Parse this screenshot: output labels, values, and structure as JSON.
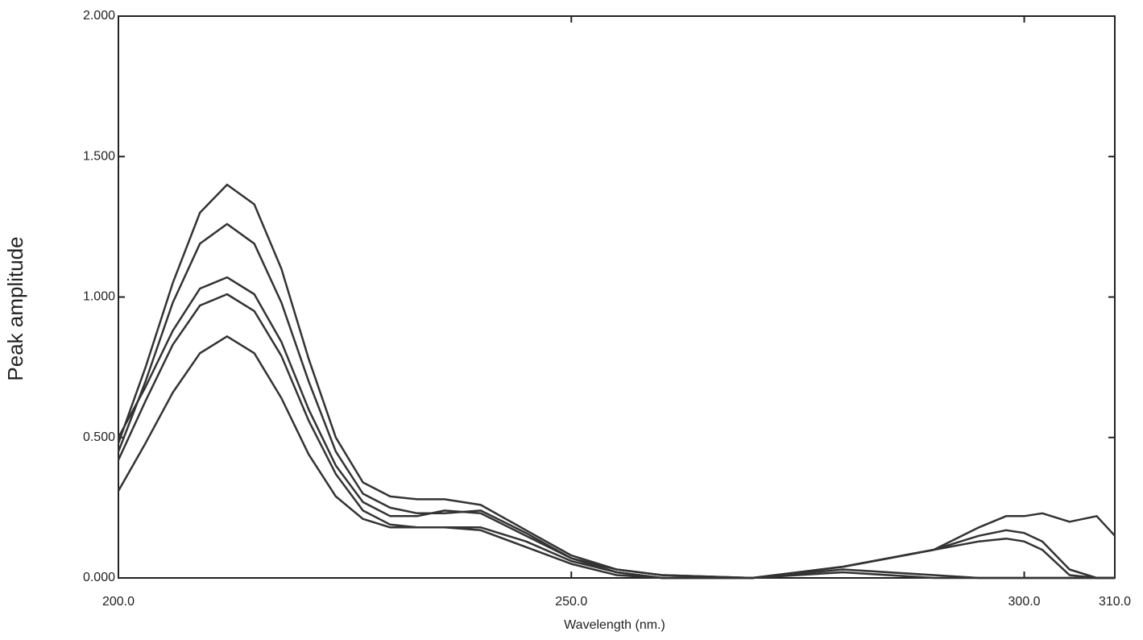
{
  "chart_data": {
    "type": "line",
    "x_label": "Wavelength (nm.)",
    "y_label": "Peak amplitude",
    "x": [
      200,
      203,
      206,
      209,
      212,
      215,
      218,
      221,
      224,
      227,
      230,
      233,
      236,
      240,
      245,
      250,
      255,
      260,
      270,
      280,
      290,
      295,
      298,
      300,
      302,
      305,
      308,
      310
    ],
    "series": [
      {
        "color": "#333333",
        "values": [
          0.48,
          0.75,
          1.05,
          1.3,
          1.4,
          1.33,
          1.1,
          0.78,
          0.5,
          0.34,
          0.29,
          0.28,
          0.28,
          0.26,
          0.17,
          0.08,
          0.03,
          0.01,
          0,
          0.04,
          0.1,
          0.18,
          0.22,
          0.22,
          0.23,
          0.2,
          0.22,
          0.15
        ]
      },
      {
        "color": "#333333",
        "values": [
          0.45,
          0.7,
          0.98,
          1.19,
          1.26,
          1.19,
          0.98,
          0.7,
          0.45,
          0.3,
          0.25,
          0.23,
          0.23,
          0.24,
          0.16,
          0.07,
          0.03,
          0.01,
          0,
          0.04,
          0.1,
          0.15,
          0.17,
          0.16,
          0.13,
          0.03,
          0,
          0
        ]
      },
      {
        "color": "#333333",
        "values": [
          0.5,
          0.68,
          0.88,
          1.03,
          1.07,
          1.01,
          0.84,
          0.6,
          0.4,
          0.27,
          0.22,
          0.22,
          0.24,
          0.23,
          0.15,
          0.07,
          0.02,
          0,
          0,
          0.04,
          0.1,
          0.13,
          0.14,
          0.13,
          0.1,
          0.01,
          0,
          0
        ]
      },
      {
        "color": "#333333",
        "values": [
          0.42,
          0.63,
          0.83,
          0.97,
          1.01,
          0.95,
          0.79,
          0.56,
          0.37,
          0.24,
          0.19,
          0.18,
          0.18,
          0.18,
          0.13,
          0.06,
          0.02,
          0,
          0,
          0.03,
          0.01,
          0,
          0,
          0,
          0,
          0,
          0,
          0
        ]
      },
      {
        "color": "#333333",
        "values": [
          0.31,
          0.48,
          0.66,
          0.8,
          0.86,
          0.8,
          0.64,
          0.44,
          0.29,
          0.21,
          0.18,
          0.18,
          0.18,
          0.17,
          0.11,
          0.05,
          0.01,
          0,
          0,
          0.02,
          0,
          0,
          0,
          0,
          0,
          0,
          0,
          0
        ]
      }
    ],
    "xlim": [
      200,
      310
    ],
    "xticks": [
      {
        "value": 200,
        "label": "200.0"
      },
      {
        "value": 250,
        "label": "250.0"
      },
      {
        "value": 300,
        "label": "300.0"
      },
      {
        "value": 310,
        "label": "310.0"
      }
    ],
    "ylim": [
      0,
      2
    ],
    "yticks": [
      {
        "value": 0,
        "label": "0.000"
      },
      {
        "value": 0.5,
        "label": "0.500"
      },
      {
        "value": 1,
        "label": "1.000"
      },
      {
        "value": 1.5,
        "label": "1.500"
      },
      {
        "value": 2,
        "label": "2.000"
      }
    ]
  }
}
